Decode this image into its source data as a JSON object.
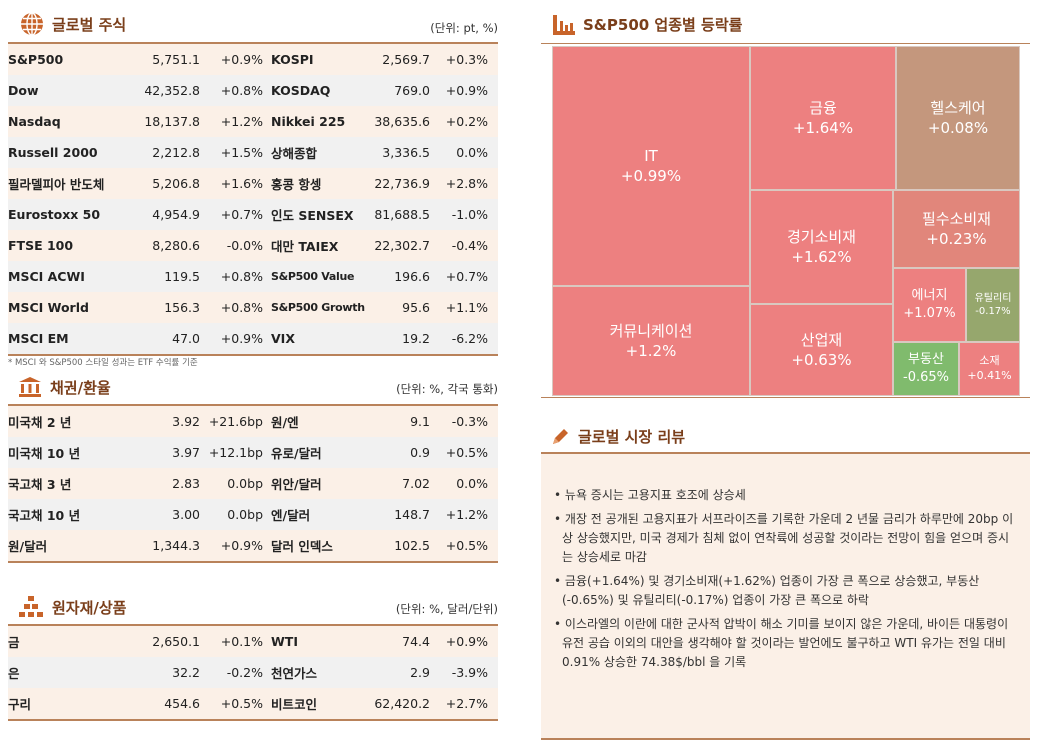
{
  "global_stocks": {
    "title": "글로벌 주식",
    "unit": "(단위: pt, %)",
    "icon": "globe-icon",
    "rows": [
      [
        "S&P500",
        "5,751.1",
        "+0.9%",
        "KOSPI",
        "2,569.7",
        "+0.3%"
      ],
      [
        "Dow",
        "42,352.8",
        "+0.8%",
        "KOSDAQ",
        "769.0",
        "+0.9%"
      ],
      [
        "Nasdaq",
        "18,137.8",
        "+1.2%",
        "Nikkei 225",
        "38,635.6",
        "+0.2%"
      ],
      [
        "Russell 2000",
        "2,212.8",
        "+1.5%",
        "상해종합",
        "3,336.5",
        "0.0%"
      ],
      [
        "필라델피아 반도체",
        "5,206.8",
        "+1.6%",
        "홍콩 항셍",
        "22,736.9",
        "+2.8%"
      ],
      [
        "Eurostoxx 50",
        "4,954.9",
        "+0.7%",
        "인도 SENSEX",
        "81,688.5",
        "-1.0%"
      ],
      [
        "FTSE 100",
        "8,280.6",
        "-0.0%",
        "대만 TAIEX",
        "22,302.7",
        "-0.4%"
      ],
      [
        "MSCI ACWI",
        "119.5",
        "+0.8%",
        "S&P500 Value",
        "196.6",
        "+0.7%"
      ],
      [
        "MSCI World",
        "156.3",
        "+0.8%",
        "S&P500 Growth",
        "95.6",
        "+1.1%"
      ],
      [
        "MSCI EM",
        "47.0",
        "+0.9%",
        "VIX",
        "19.2",
        "-6.2%"
      ]
    ],
    "note": "* MSCI 와 S&P500 스타일 성과는 ETF 수익률 기준"
  },
  "bonds_fx": {
    "title": "채권/환율",
    "unit": "(단위: %, 각국 통화)",
    "icon": "bank-icon",
    "rows": [
      [
        "미국채 2 년",
        "3.92",
        "+21.6bp",
        "원/엔",
        "9.1",
        "-0.3%"
      ],
      [
        "미국채 10 년",
        "3.97",
        "+12.1bp",
        "유로/달러",
        "0.9",
        "+0.5%"
      ],
      [
        "국고채 3 년",
        "2.83",
        "0.0bp",
        "위안/달러",
        "7.02",
        "0.0%"
      ],
      [
        "국고채 10 년",
        "3.00",
        "0.0bp",
        "엔/달러",
        "148.7",
        "+1.2%"
      ],
      [
        "원/달러",
        "1,344.3",
        "+0.9%",
        "달러 인덱스",
        "102.5",
        "+0.5%"
      ]
    ]
  },
  "commodities": {
    "title": "원자재/상품",
    "unit": "(단위: %, 달러/단위)",
    "icon": "gold-bars-icon",
    "rows": [
      [
        "금",
        "2,650.1",
        "+0.1%",
        "WTI",
        "74.4",
        "+0.9%"
      ],
      [
        "은",
        "32.2",
        "-0.2%",
        "천연가스",
        "2.9",
        "-3.9%"
      ],
      [
        "구리",
        "454.6",
        "+0.5%",
        "비트코인",
        "62,420.2",
        "+2.7%"
      ]
    ]
  },
  "treemap": {
    "title": "S&P500 업종별 등락률",
    "icon": "bar-chart-icon",
    "sectors": [
      {
        "name": "IT",
        "change": "+0.99%",
        "color": "#ed8080"
      },
      {
        "name": "커뮤니케이션",
        "change": "+1.2%",
        "color": "#ed8080"
      },
      {
        "name": "금융",
        "change": "+1.64%",
        "color": "#ed8080"
      },
      {
        "name": "헬스케어",
        "change": "+0.08%",
        "color": "#c4977d"
      },
      {
        "name": "경기소비재",
        "change": "+1.62%",
        "color": "#ed8080"
      },
      {
        "name": "산업재",
        "change": "+0.63%",
        "color": "#ed8080"
      },
      {
        "name": "필수소비재",
        "change": "+0.23%",
        "color": "#e1867b"
      },
      {
        "name": "에너지",
        "change": "+1.07%",
        "color": "#ed8080"
      },
      {
        "name": "유틸리티",
        "change": "-0.17%",
        "color": "#96a76d"
      },
      {
        "name": "부동산",
        "change": "-0.65%",
        "color": "#80bb6d"
      },
      {
        "name": "소재",
        "change": "+0.41%",
        "color": "#ed8080"
      }
    ]
  },
  "review": {
    "title": "글로벌 시장 리뷰",
    "icon": "pencil-icon",
    "bullets": [
      "뉴욕 증시는 고용지표 호조에 상승세",
      "개장 전 공개된 고용지표가 서프라이즈를 기록한 가운데 2 년물 금리가 하루만에 20bp 이상 상승했지만, 미국 경제가 침체 없이 연착륙에 성공할 것이라는 전망이 힘을 얻으며 증시는 상승세로 마감",
      "금융(+1.64%) 및 경기소비재(+1.62%) 업종이 가장 큰 폭으로 상승했고, 부동산(-0.65%) 및 유틸리티(-0.17%) 업종이 가장 큰 폭으로 하락",
      "이스라엘의 이란에 대한 군사적 압박이 해소 기미를 보이지 않은 가운데, 바이든 대통령이 유전 공습 이외의 대안을 생각해야 할 것이라는 발언에도 불구하고 WTI 유가는 전일 대비 0.91% 상승한 74.38$/bbl 을 기록"
    ]
  }
}
